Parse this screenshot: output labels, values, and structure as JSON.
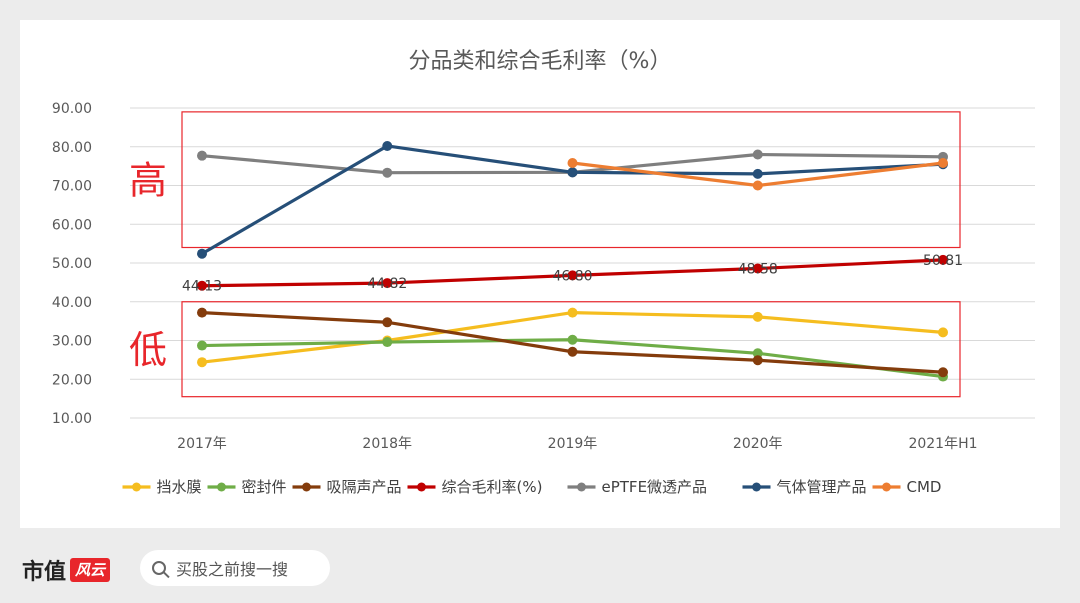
{
  "chart_data": {
    "type": "line",
    "title": "分品类和综合毛利率（%）",
    "categories": [
      "2017年",
      "2018年",
      "2019年",
      "2020年",
      "2021年H1"
    ],
    "ylim": [
      10,
      90
    ],
    "yticks": [
      "10.00",
      "20.00",
      "30.00",
      "40.00",
      "50.00",
      "60.00",
      "70.00",
      "80.00",
      "90.00"
    ],
    "grid": true,
    "legend_position": "bottom",
    "series": [
      {
        "name": "挡水膜",
        "color": "#f5bd1f",
        "values": [
          24.4,
          30.0,
          37.2,
          36.1,
          32.1
        ]
      },
      {
        "name": "密封件",
        "color": "#6fad47",
        "values": [
          28.7,
          29.6,
          30.2,
          26.7,
          20.7
        ]
      },
      {
        "name": "吸隔声产品",
        "color": "#843c0c",
        "values": [
          37.2,
          34.7,
          27.1,
          24.9,
          21.8
        ]
      },
      {
        "name": "综合毛利率(%)",
        "color": "#c00000",
        "values": [
          44.13,
          44.82,
          46.8,
          48.58,
          50.81
        ],
        "labels": [
          "44.13",
          "44.82",
          "46.80",
          "48.58",
          "50.81"
        ]
      },
      {
        "name": "ePTFE微透产品",
        "color": "#7f7f7f",
        "values": [
          77.7,
          73.3,
          73.4,
          78.0,
          77.4
        ]
      },
      {
        "name": "气体管理产品",
        "color": "#264f78",
        "values": [
          52.4,
          80.2,
          73.4,
          73.0,
          75.5
        ]
      },
      {
        "name": "CMD",
        "color": "#ed7d31",
        "values": [
          null,
          null,
          75.8,
          70.0,
          75.8
        ]
      }
    ],
    "annotations": [
      {
        "text": "高",
        "color": "#e8262b",
        "box_range": [
          54,
          89
        ]
      },
      {
        "text": "低",
        "color": "#e8262b",
        "box_range": [
          15.5,
          40
        ]
      }
    ]
  },
  "footer": {
    "brand_text": "市值",
    "brand_badge": "风云",
    "search_placeholder": "买股之前搜一搜"
  }
}
